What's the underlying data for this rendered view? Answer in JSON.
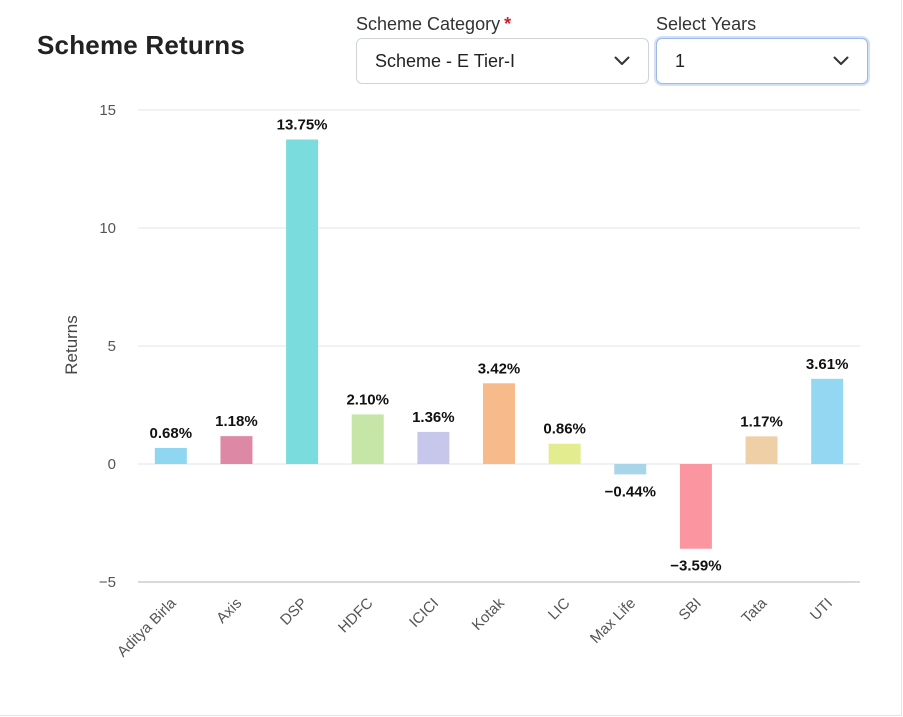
{
  "header": {
    "title": "Scheme Returns"
  },
  "filters": {
    "category_label": "Scheme Category",
    "category_required_mark": "*",
    "category_value": "Scheme - E Tier-I",
    "years_label": "Select Years",
    "years_value": "1"
  },
  "chart_data": {
    "type": "bar",
    "ylabel": "Returns",
    "ylim": [
      -5,
      15
    ],
    "yticks": [
      -5,
      0,
      5,
      10,
      15
    ],
    "ytick_labels": [
      "−5",
      "0",
      "5",
      "10",
      "15"
    ],
    "grid": true,
    "categories": [
      "Aditya Birla",
      "Axis",
      "DSP",
      "HDFC",
      "ICICI",
      "Kotak",
      "LIC",
      "Max Life",
      "SBI",
      "Tata",
      "UTI"
    ],
    "values": [
      0.68,
      1.18,
      13.75,
      2.1,
      1.36,
      3.42,
      0.86,
      -0.44,
      -3.59,
      1.17,
      3.61
    ],
    "data_labels": [
      "0.68%",
      "1.18%",
      "13.75%",
      "2.10%",
      "1.36%",
      "3.42%",
      "0.86%",
      "−0.44%",
      "−3.59%",
      "1.17%",
      "3.61%"
    ],
    "colors": [
      "#8fd6f0",
      "#dd89a6",
      "#7adcdc",
      "#c5e6a6",
      "#c7c7ec",
      "#f7ba8b",
      "#e3ed8f",
      "#a9d5e9",
      "#fb96a1",
      "#efd0a6",
      "#93d7f3"
    ]
  }
}
